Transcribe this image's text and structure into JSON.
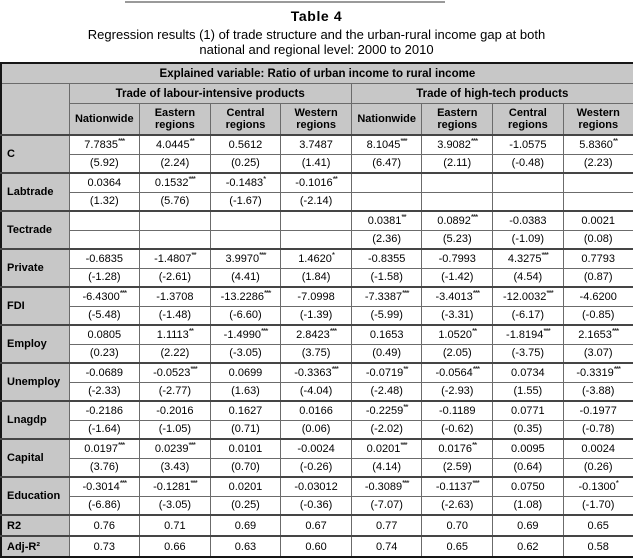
{
  "page": {
    "table_label": "Table 4",
    "title_line1": "Regression results (1) of trade structure and the urban-rural income gap at both",
    "title_line2": "national and regional level: 2000 to 2010"
  },
  "table": {
    "explained_variable": "Explained variable: Ratio of urban income to rural income",
    "groups": [
      "Trade of labour-intensive products",
      "Trade of high-tech products"
    ],
    "columns": [
      "Nationwide",
      "Eastern regions",
      "Central regions",
      "Western regions",
      "Nationwide",
      "Eastern regions",
      "Central regions",
      "Western regions"
    ],
    "rows": [
      {
        "label": "C",
        "coef": [
          "7.7835***",
          "4.0445**",
          "0.5612",
          "3.7487",
          "8.1045***",
          "3.9082***",
          "-1.0575",
          "5.8360**"
        ],
        "tstat": [
          "(5.92)",
          "(2.24)",
          "(0.25)",
          "(1.41)",
          "(6.47)",
          "(2.11)",
          "(-0.48)",
          "(2.23)"
        ]
      },
      {
        "label": "Labtrade",
        "coef": [
          "0.0364",
          "0.1532***",
          "-0.1483*",
          "-0.1016**",
          "",
          "",
          "",
          ""
        ],
        "tstat": [
          "(1.32)",
          "(5.76)",
          "(-1.67)",
          "(-2.14)",
          "",
          "",
          "",
          ""
        ]
      },
      {
        "label": "Tectrade",
        "coef": [
          "",
          "",
          "",
          "",
          "0.0381**",
          "0.0892***",
          "-0.0383",
          "0.0021"
        ],
        "tstat": [
          "",
          "",
          "",
          "",
          "(2.36)",
          "(5.23)",
          "(-1.09)",
          "(0.08)"
        ]
      },
      {
        "label": "Private",
        "coef": [
          "-0.6835",
          "-1.4807**",
          "3.9970***",
          "1.4620*",
          "-0.8355",
          "-0.7993",
          "4.3275***",
          "0.7793"
        ],
        "tstat": [
          "(-1.28)",
          "(-2.61)",
          "(4.41)",
          "(1.84)",
          "(-1.58)",
          "(-1.42)",
          "(4.54)",
          "(0.87)"
        ]
      },
      {
        "label": "FDI",
        "coef": [
          "-6.4300***",
          "-1.3708",
          "-13.2286***",
          "-7.0998",
          "-7.3387***",
          "-3.4013***",
          "-12.0032***",
          "-4.6200"
        ],
        "tstat": [
          "(-5.48)",
          "(-1.48)",
          "(-6.60)",
          "(-1.39)",
          "(-5.99)",
          "(-3.31)",
          "(-6.17)",
          "(-0.85)"
        ]
      },
      {
        "label": "Employ",
        "coef": [
          "0.0805",
          "1.1113**",
          "-1.4990***",
          "2.8423***",
          "0.1653",
          "1.0520**",
          "-1.8194***",
          "2.1653***"
        ],
        "tstat": [
          "(0.23)",
          "(2.22)",
          "(-3.05)",
          "(3.75)",
          "(0.49)",
          "(2.05)",
          "(-3.75)",
          "(3.07)"
        ]
      },
      {
        "label": "Unemploy",
        "coef": [
          "-0.0689",
          "-0.0523***",
          "0.0699",
          "-0.3363***",
          "-0.0719**",
          "-0.0564***",
          "0.0734",
          "-0.3319***"
        ],
        "tstat": [
          "(-2.33)",
          "(-2.77)",
          "(1.63)",
          "(-4.04)",
          "(-2.48)",
          "(-2.93)",
          "(1.55)",
          "(-3.88)"
        ]
      },
      {
        "label": "Lnagdp",
        "coef": [
          "-0.2186",
          "-0.2016",
          "0.1627",
          "0.0166",
          "-0.2259**",
          "-0.1189",
          "0.0771",
          "-0.1977"
        ],
        "tstat": [
          "(-1.64)",
          "(-1.05)",
          "(0.71)",
          "(0.06)",
          "(-2.02)",
          "(-0.62)",
          "(0.35)",
          "(-0.78)"
        ]
      },
      {
        "label": "Capital",
        "coef": [
          "0.0197***",
          "0.0239***",
          "0.0101",
          "-0.0024",
          "0.0201***",
          "0.0176**",
          "0.0095",
          "0.0024"
        ],
        "tstat": [
          "(3.76)",
          "(3.43)",
          "(0.70)",
          "(-0.26)",
          "(4.14)",
          "(2.59)",
          "(0.64)",
          "(0.26)"
        ]
      },
      {
        "label": "Education",
        "coef": [
          "-0.3014***",
          "-0.1281***",
          "0.0201",
          "-0.03012",
          "-0.3089***",
          "-0.1137***",
          "0.0750",
          "-0.1300*"
        ],
        "tstat": [
          "(-6.86)",
          "(-3.05)",
          "(0.25)",
          "(-0.36)",
          "(-7.07)",
          "(-2.63)",
          "(1.08)",
          "(-1.70)"
        ]
      }
    ],
    "stats": [
      {
        "label": "R2",
        "values": [
          "0.76",
          "0.71",
          "0.69",
          "0.67",
          "0.77",
          "0.70",
          "0.69",
          "0.65"
        ]
      },
      {
        "label": "Adj-R²",
        "values": [
          "0.73",
          "0.66",
          "0.63",
          "0.60",
          "0.74",
          "0.65",
          "0.62",
          "0.58"
        ]
      }
    ]
  }
}
